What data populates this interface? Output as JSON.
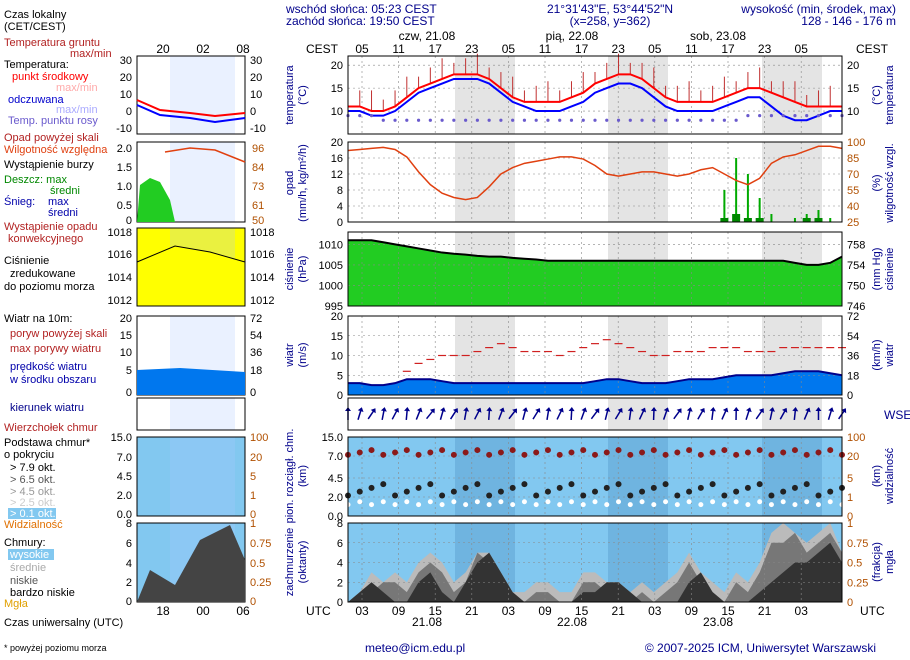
{
  "header": {
    "sunrise": "wschód słońca: 05:23 CEST",
    "sunset": "zachód słońca: 19:50 CEST",
    "coords": "21°31'43\"E, 53°44'52\"N",
    "grid": "(x=258, y=362)",
    "height_title": "wysokość (min, środek, max)",
    "height_values": "128 - 146 - 176 m"
  },
  "legend": {
    "local_time": "Czas lokalny",
    "local_time_sub": "(CET/CEST)",
    "soil_temp": "Temperatura gruntu",
    "soil_temp_sub": "max/min",
    "temperature": "Temperatura:",
    "temp_mid": "punkt środkowy",
    "temp_max": "max/min",
    "felt": "odczuwana",
    "felt_max": "max/min",
    "dew": "Temp. punktu rosy",
    "precip_over": "Opad powyżej skali",
    "humidity": "Wilgotność względna",
    "storm": "Wystąpienie burzy",
    "rain": "Deszcz: max",
    "rain_mid": "średni",
    "snow": "Śnieg:",
    "snow_max": "max",
    "snow_mid": "średni",
    "conv": "Wystąpienie opadu",
    "conv2": "konwekcyjnego",
    "pressure": "Ciśnienie",
    "pressure2": "zredukowane",
    "pressure3": "do poziomu morza",
    "wind": "Wiatr na 10m:",
    "gust_over": "poryw powyżej skali",
    "gust_max": "max porywy wiatru",
    "wind_speed": "prędkość wiatru",
    "wind_area": "w środku obszaru",
    "wind_dir": "kierunek wiatru",
    "cloud_top": "Wierzchołek chmur",
    "cloud_base": "Podstawa chmur*",
    "cloud_base2": "o pokryciu",
    "okt79": "> 7.9 okt.",
    "okt65": "> 6.5 okt.",
    "okt45": "> 4.5 okt.",
    "okt25": "> 2.5 okt.",
    "okt01": "> 0.1 okt.",
    "visibility": "Widzialność",
    "clouds": "Chmury:",
    "high": "wysokie",
    "mid": "średnie",
    "low": "niskie",
    "very_low": "bardzo niskie",
    "fog": "Mgła",
    "utc": "Czas uniwersalny (UTC)",
    "footnote": "* powyżej poziomu morza"
  },
  "axes": {
    "cest": "CEST",
    "utc": "UTC",
    "temp_label": "temperatura",
    "temp_unit": "(°C)",
    "precip_label": "opad",
    "precip_unit": "(mm/h, kg/m²/h)",
    "hum_label": "wilgotność wzgl.",
    "hum_unit": "(%)",
    "press_label": "ciśnienie",
    "press_unit": "(hPa)",
    "press_unit_r": "(mm Hg)",
    "wind_label": "wiatr",
    "wind_unit": "(m/s)",
    "wind_unit_r": "(km/h)",
    "cloud_label": "pion. rozciągł. chm.",
    "cloud_unit": "(km)",
    "vis_label": "widzialność",
    "vis_unit": "(km)",
    "cover_label": "zachmurzenie",
    "cover_unit": "(oktanty)",
    "fog_label": "mgła",
    "fog_unit": "(frakcja)",
    "wind_compass": "WSEN"
  },
  "footer": {
    "email": "meteo@icm.edu.pl",
    "copyright": "© 2007-2025 ICM, Uniwersytet Warszawski"
  },
  "chart_data": {
    "type": "meteogram",
    "days": [
      {
        "label": "czw, 21.08",
        "date": "21.08"
      },
      {
        "label": "pią, 22.08",
        "date": "22.08"
      },
      {
        "label": "sob, 23.08",
        "date": "23.08"
      }
    ],
    "cest_ticks": [
      "05",
      "11",
      "17",
      "23",
      "05",
      "11",
      "17",
      "23",
      "05",
      "11",
      "17",
      "23",
      "05"
    ],
    "utc_ticks": [
      "03",
      "09",
      "15",
      "21",
      "03",
      "09",
      "15",
      "21",
      "03",
      "09",
      "15",
      "21",
      "03"
    ],
    "small_cest_ticks": [
      "20",
      "02",
      "08"
    ],
    "small_utc_ticks": [
      "18",
      "00",
      "06"
    ],
    "colors": {
      "temp": "#ff0000",
      "felt": "#0000ff",
      "humidity": "#e04010",
      "pressure_fill": "#22cc22",
      "wind_fill": "#0077ee",
      "sky": "#82c8f0"
    },
    "temperature": {
      "ylim": [
        5,
        22
      ],
      "yticks": [
        10,
        15,
        20
      ],
      "temp_mid": [
        11,
        11,
        10,
        10,
        11,
        13,
        15,
        16,
        17,
        18,
        18,
        18,
        17,
        15,
        13,
        12,
        12,
        12,
        12,
        13,
        14,
        16,
        17,
        18,
        18,
        17,
        15,
        13,
        12,
        12,
        12,
        12,
        13,
        14,
        15,
        15,
        14,
        13,
        12,
        11,
        11,
        11,
        11
      ],
      "felt": [
        10,
        10,
        9,
        9,
        10,
        12,
        14,
        15,
        16,
        17,
        17,
        17,
        16,
        14,
        12,
        11,
        10,
        10,
        10,
        11,
        12,
        14,
        15,
        16,
        16,
        15,
        13,
        11,
        10,
        10,
        10,
        10,
        11,
        12,
        13,
        13,
        11,
        9,
        8,
        8,
        9,
        10,
        10
      ],
      "dew": [
        9,
        9,
        9,
        8,
        8,
        8,
        8,
        8,
        8,
        8,
        8,
        8,
        8,
        8,
        8,
        8,
        8,
        8,
        8,
        8,
        8,
        8,
        8,
        8,
        8,
        8,
        8,
        8,
        8,
        8,
        8,
        8,
        8,
        8,
        9,
        9,
        9,
        9,
        9,
        9,
        9,
        9,
        9
      ]
    },
    "precip_humidity": {
      "ylim_precip": [
        0,
        20
      ],
      "yticks_precip": [
        0,
        4,
        8,
        12,
        16,
        20
      ],
      "ylim_humidity": [
        25,
        100
      ],
      "yticks_humidity": [
        25,
        40,
        55,
        70,
        85,
        100
      ],
      "humidity": [
        92,
        93,
        94,
        95,
        93,
        86,
        72,
        60,
        52,
        48,
        46,
        48,
        58,
        70,
        76,
        80,
        82,
        84,
        86,
        86,
        84,
        78,
        70,
        68,
        70,
        72,
        72,
        70,
        68,
        70,
        74,
        76,
        70,
        64,
        60,
        66,
        80,
        86,
        88,
        92,
        96,
        96,
        94
      ],
      "rain_max": [
        0,
        0,
        0,
        0,
        0,
        0,
        0,
        0,
        0,
        0,
        0,
        0,
        0,
        0,
        0,
        0,
        0,
        0,
        0,
        0,
        0,
        0,
        0,
        0,
        0,
        0,
        0,
        0,
        0,
        0,
        0,
        0,
        8,
        16,
        12,
        6,
        2,
        0,
        1,
        2,
        3,
        1,
        0
      ],
      "rain_mid": [
        0,
        0,
        0,
        0,
        0,
        0,
        0,
        0,
        0,
        0,
        0,
        0,
        0,
        0,
        0,
        0,
        0,
        0,
        0,
        0,
        0,
        0,
        0,
        0,
        0,
        0,
        0,
        0,
        0,
        0,
        0,
        0,
        1,
        2,
        1,
        1,
        0,
        0,
        0,
        1,
        1,
        0,
        0
      ]
    },
    "pressure": {
      "ylim": [
        995,
        1013
      ],
      "yticks": [
        995,
        1000,
        1005,
        1010
      ],
      "yticks_right": [
        746,
        750,
        754,
        758
      ],
      "values": [
        1011,
        1011,
        1011,
        1010.5,
        1010,
        1009.5,
        1009,
        1008.5,
        1008,
        1007.7,
        1007.5,
        1007.2,
        1007,
        1007,
        1006.7,
        1006.5,
        1006.3,
        1006,
        1006,
        1006,
        1006,
        1006,
        1006,
        1006,
        1006,
        1006,
        1006,
        1006,
        1006,
        1006,
        1006,
        1006,
        1006,
        1006,
        1006,
        1006,
        1006,
        1006,
        1005.5,
        1005,
        1005,
        1005.5,
        1007
      ]
    },
    "wind": {
      "ylim": [
        0,
        20
      ],
      "yticks": [
        0,
        5,
        10,
        15,
        20
      ],
      "yticks_right": [
        0,
        18,
        36,
        54,
        72
      ],
      "speed": [
        3,
        3,
        2.5,
        2.5,
        3,
        4,
        4,
        4,
        3.5,
        3,
        3,
        3,
        3,
        3,
        3,
        3,
        3,
        3,
        3,
        3,
        3,
        3.5,
        4,
        4,
        3.5,
        3,
        3,
        3,
        3.5,
        4,
        4,
        4,
        4.5,
        5,
        5,
        5,
        5,
        5.5,
        6,
        6,
        6,
        5.5,
        5
      ],
      "gust": [
        null,
        null,
        null,
        null,
        null,
        6,
        8,
        9,
        10,
        10,
        10,
        11,
        12,
        13,
        12,
        11,
        11,
        11,
        10,
        11,
        12,
        13,
        14,
        13,
        12,
        11,
        10,
        10,
        11,
        11,
        11,
        12,
        12,
        12,
        11,
        11,
        11,
        12,
        12,
        12,
        12,
        12,
        12
      ]
    },
    "cloud_vis": {
      "ylim": [
        0,
        15
      ],
      "yticks": [
        0,
        2.0,
        4.5,
        7.0,
        15.0
      ],
      "yticks_right_labels": [
        "0",
        "1",
        "5",
        "20",
        "100"
      ]
    },
    "cloud_cover": {
      "ylim": [
        0,
        8
      ],
      "yticks": [
        0,
        2,
        4,
        6,
        8
      ],
      "yticks_right": [
        "0",
        "0.25",
        "0.5",
        "0.75",
        "1"
      ],
      "low": [
        0,
        1,
        2,
        1,
        0,
        0,
        2,
        3,
        1,
        0,
        2,
        4,
        5,
        3,
        1,
        0,
        0,
        0,
        0,
        0,
        1,
        1,
        2,
        2,
        1,
        0,
        0,
        0,
        0,
        2,
        3,
        1,
        0,
        0,
        0,
        1,
        2,
        3,
        4,
        4,
        5,
        6,
        4
      ],
      "mid": [
        0,
        0,
        1,
        2,
        2,
        1,
        3,
        4,
        3,
        1,
        2,
        5,
        4,
        2,
        0,
        0,
        1,
        1,
        0,
        0,
        2,
        2,
        1,
        1,
        0,
        1,
        0,
        1,
        2,
        4,
        2,
        1,
        0,
        2,
        1,
        3,
        6,
        6,
        7,
        5,
        6,
        7,
        5
      ],
      "high": [
        0,
        1,
        3,
        2,
        3,
        2,
        4,
        5,
        4,
        2,
        3,
        5,
        5,
        3,
        1,
        1,
        2,
        2,
        1,
        1,
        3,
        3,
        2,
        2,
        1,
        2,
        1,
        2,
        3,
        5,
        3,
        2,
        1,
        3,
        2,
        4,
        7,
        8,
        7,
        6,
        7,
        8,
        5
      ]
    }
  }
}
